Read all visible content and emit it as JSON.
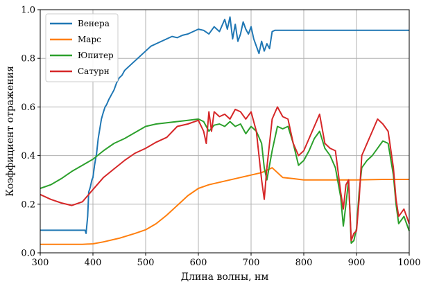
{
  "chart_data": {
    "type": "line",
    "title": "",
    "xlabel": "Длина волны, нм",
    "ylabel": "Коэффициент отражения",
    "xlim": [
      300,
      1000
    ],
    "ylim": [
      0,
      1.0
    ],
    "xticks": [
      "300",
      "400",
      "500",
      "600",
      "700",
      "800",
      "900",
      "1000"
    ],
    "yticks": [
      "0.0",
      "0.2",
      "0.4",
      "0.6",
      "0.8",
      "1.0"
    ],
    "grid": true,
    "legend_position": "top-left",
    "series": [
      {
        "name": "Венера",
        "color": "#1f77b4",
        "x": [
          300,
          385,
          387,
          390,
          392,
          395,
          398,
          400,
          403,
          407,
          410,
          413,
          416,
          420,
          423,
          426,
          430,
          435,
          440,
          445,
          450,
          455,
          460,
          465,
          470,
          475,
          480,
          485,
          490,
          495,
          500,
          510,
          520,
          530,
          540,
          550,
          560,
          570,
          580,
          590,
          600,
          610,
          620,
          630,
          640,
          650,
          655,
          660,
          665,
          670,
          675,
          680,
          685,
          690,
          695,
          700,
          705,
          710,
          715,
          720,
          725,
          730,
          735,
          740,
          745,
          1000
        ],
        "y": [
          0.093,
          0.093,
          0.08,
          0.15,
          0.25,
          0.27,
          0.3,
          0.31,
          0.36,
          0.41,
          0.47,
          0.51,
          0.55,
          0.58,
          0.6,
          0.61,
          0.63,
          0.65,
          0.67,
          0.7,
          0.72,
          0.73,
          0.75,
          0.76,
          0.77,
          0.78,
          0.79,
          0.8,
          0.81,
          0.82,
          0.83,
          0.85,
          0.86,
          0.87,
          0.88,
          0.89,
          0.885,
          0.895,
          0.9,
          0.91,
          0.92,
          0.915,
          0.9,
          0.93,
          0.91,
          0.96,
          0.92,
          0.97,
          0.88,
          0.94,
          0.87,
          0.9,
          0.95,
          0.92,
          0.9,
          0.93,
          0.88,
          0.85,
          0.82,
          0.87,
          0.83,
          0.86,
          0.84,
          0.91,
          0.915,
          0.915
        ]
      },
      {
        "name": "Марс",
        "color": "#ff7f0e",
        "x": [
          300,
          380,
          400,
          420,
          450,
          480,
          500,
          520,
          540,
          560,
          580,
          600,
          620,
          640,
          660,
          680,
          700,
          720,
          740,
          760,
          780,
          800,
          850,
          900,
          950,
          1000
        ],
        "y": [
          0.035,
          0.035,
          0.037,
          0.045,
          0.06,
          0.08,
          0.095,
          0.12,
          0.155,
          0.195,
          0.235,
          0.265,
          0.28,
          0.29,
          0.3,
          0.31,
          0.32,
          0.33,
          0.35,
          0.31,
          0.305,
          0.3,
          0.3,
          0.3,
          0.302,
          0.302
        ]
      },
      {
        "name": "Юпитер",
        "color": "#2ca02c",
        "x": [
          300,
          320,
          340,
          360,
          380,
          400,
          420,
          440,
          460,
          480,
          500,
          520,
          540,
          560,
          580,
          600,
          610,
          620,
          630,
          640,
          650,
          660,
          670,
          680,
          690,
          700,
          710,
          720,
          725,
          730,
          740,
          750,
          760,
          770,
          780,
          790,
          800,
          810,
          820,
          830,
          840,
          850,
          860,
          870,
          875,
          880,
          885,
          890,
          895,
          900,
          905,
          910,
          920,
          930,
          940,
          950,
          960,
          970,
          975,
          980,
          990,
          1000
        ],
        "y": [
          0.265,
          0.28,
          0.305,
          0.335,
          0.36,
          0.385,
          0.42,
          0.45,
          0.47,
          0.495,
          0.52,
          0.53,
          0.535,
          0.54,
          0.545,
          0.55,
          0.54,
          0.5,
          0.525,
          0.53,
          0.52,
          0.54,
          0.52,
          0.53,
          0.49,
          0.52,
          0.5,
          0.45,
          0.35,
          0.3,
          0.42,
          0.52,
          0.51,
          0.52,
          0.45,
          0.36,
          0.38,
          0.42,
          0.47,
          0.5,
          0.43,
          0.4,
          0.35,
          0.23,
          0.11,
          0.2,
          0.3,
          0.04,
          0.05,
          0.1,
          0.25,
          0.35,
          0.38,
          0.4,
          0.43,
          0.46,
          0.45,
          0.32,
          0.2,
          0.12,
          0.15,
          0.09
        ]
      },
      {
        "name": "Сатурн",
        "color": "#d62728",
        "x": [
          300,
          320,
          340,
          360,
          380,
          400,
          420,
          440,
          460,
          480,
          500,
          520,
          540,
          560,
          580,
          600,
          610,
          615,
          620,
          625,
          630,
          640,
          650,
          660,
          670,
          680,
          690,
          700,
          710,
          720,
          725,
          730,
          740,
          750,
          760,
          770,
          780,
          790,
          800,
          810,
          820,
          830,
          840,
          850,
          860,
          870,
          875,
          880,
          885,
          890,
          895,
          900,
          905,
          910,
          920,
          930,
          940,
          950,
          960,
          970,
          975,
          980,
          990,
          1000
        ],
        "y": [
          0.24,
          0.22,
          0.205,
          0.195,
          0.21,
          0.26,
          0.31,
          0.345,
          0.38,
          0.41,
          0.43,
          0.455,
          0.475,
          0.52,
          0.53,
          0.545,
          0.5,
          0.45,
          0.58,
          0.5,
          0.58,
          0.56,
          0.57,
          0.55,
          0.59,
          0.58,
          0.55,
          0.58,
          0.5,
          0.3,
          0.22,
          0.35,
          0.55,
          0.6,
          0.56,
          0.55,
          0.45,
          0.4,
          0.42,
          0.47,
          0.52,
          0.57,
          0.45,
          0.43,
          0.42,
          0.25,
          0.18,
          0.28,
          0.3,
          0.05,
          0.08,
          0.09,
          0.22,
          0.4,
          0.45,
          0.5,
          0.55,
          0.53,
          0.5,
          0.35,
          0.22,
          0.15,
          0.18,
          0.12
        ]
      }
    ]
  }
}
